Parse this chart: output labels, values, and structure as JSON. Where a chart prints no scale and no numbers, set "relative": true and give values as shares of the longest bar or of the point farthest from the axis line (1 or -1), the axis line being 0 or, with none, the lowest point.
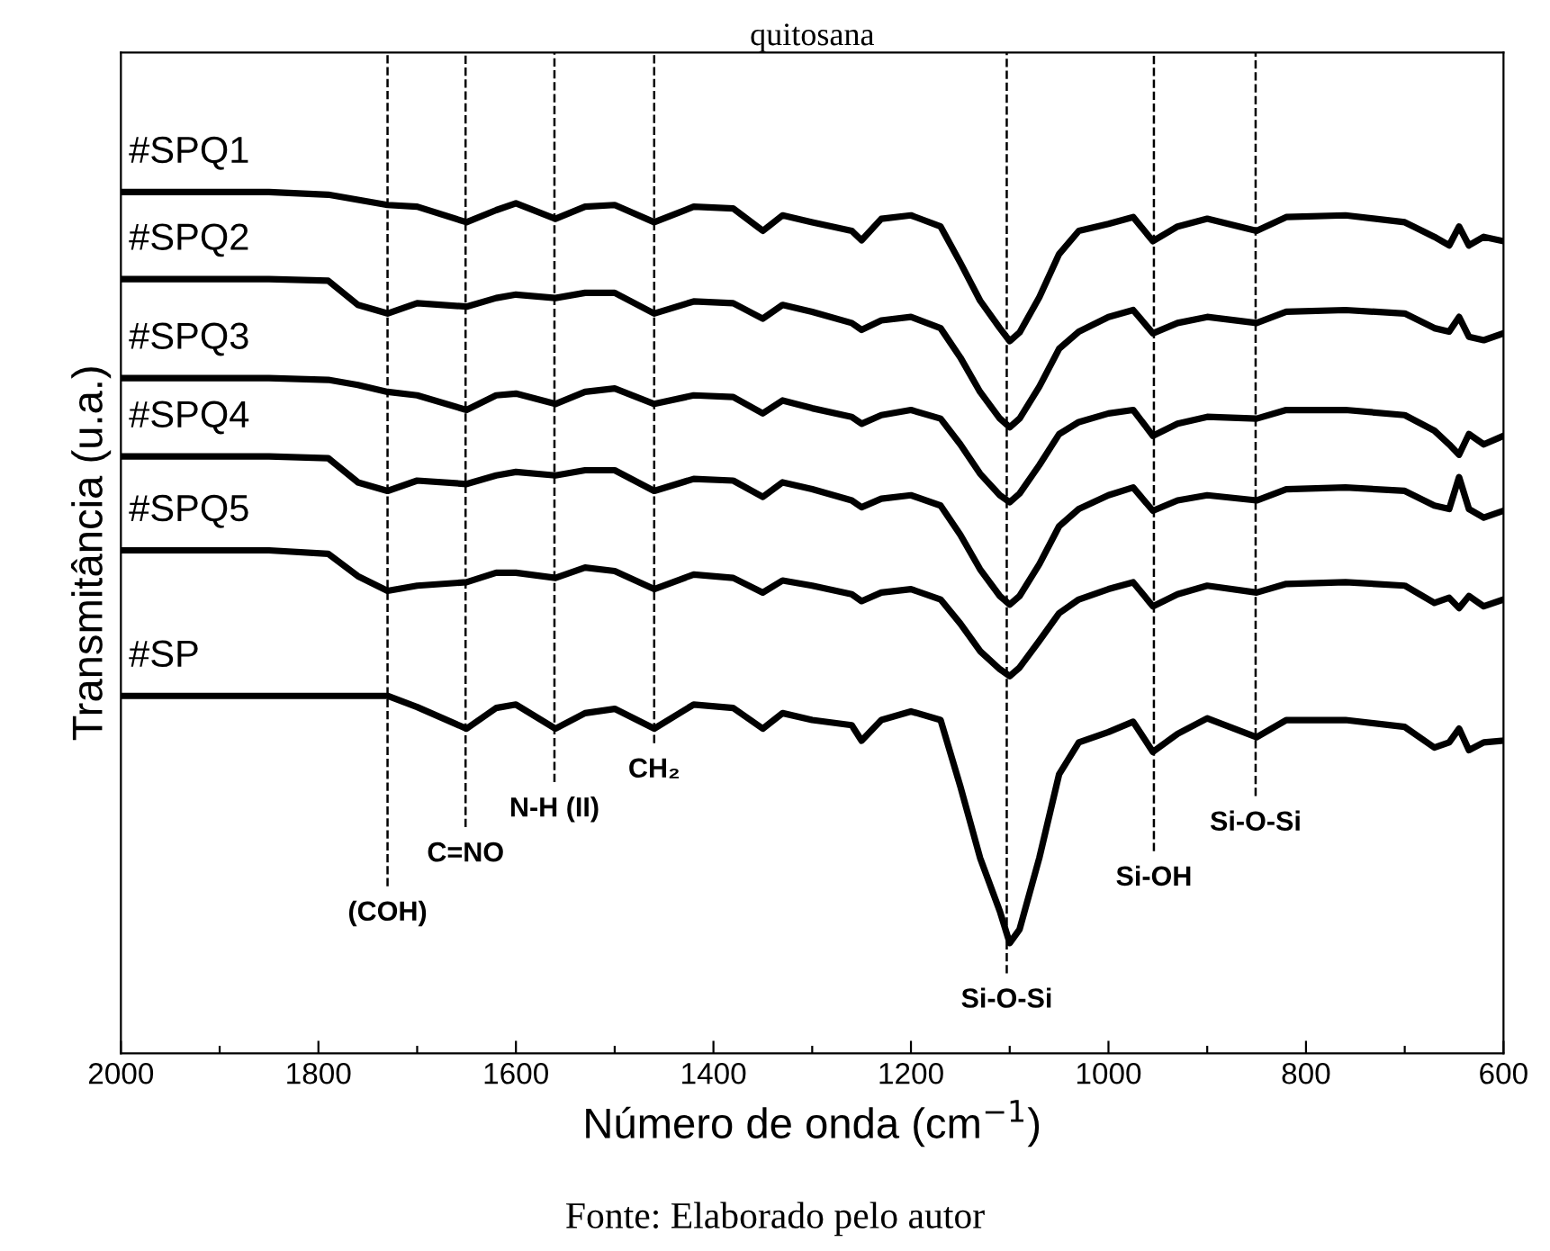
{
  "chart_data": {
    "type": "line",
    "relative": true,
    "title": "quitosana",
    "xlabel": "Número de onda (cm$^{−1}$)",
    "ylabel": "Transmitância (u.a.)",
    "annotations": [
      "Fonte: Elaborado pelo autor"
    ],
    "xlim": [
      2000,
      600
    ],
    "xticks": [
      2000,
      {
        "value": 1900,
        "label": null
      },
      1800,
      {
        "value": 1700,
        "label": null
      },
      1600,
      {
        "value": 1500,
        "label": null
      },
      1400,
      {
        "value": 1300,
        "label": null
      },
      1200,
      {
        "value": 1100,
        "label": null
      },
      1000,
      {
        "value": 900,
        "label": null
      },
      800,
      {
        "value": 700,
        "label": null
      },
      600
    ],
    "tick_labels": "x",
    "grid": false,
    "legend": false,
    "marker": "none",
    "line_style": "solid",
    "x": [
      2000,
      1850,
      1790,
      1760,
      1730,
      1700,
      1650,
      1620,
      1600,
      1560,
      1530,
      1500,
      1460,
      1420,
      1380,
      1350,
      1330,
      1300,
      1260,
      1250,
      1230,
      1200,
      1170,
      1150,
      1130,
      1110,
      1100,
      1090,
      1070,
      1050,
      1030,
      1000,
      975,
      955,
      930,
      900,
      850,
      820,
      760,
      700,
      670,
      655,
      645,
      635,
      620,
      600
    ],
    "series": [
      {
        "name": "#SPQ1",
        "color": "#000000",
        "values": [
          1.0,
          1.0,
          0.997,
          0.991,
          0.985,
          0.983,
          0.965,
          0.979,
          0.987,
          0.969,
          0.983,
          0.985,
          0.965,
          0.983,
          0.981,
          0.955,
          0.973,
          0.965,
          0.955,
          0.944,
          0.969,
          0.973,
          0.96,
          0.918,
          0.874,
          0.842,
          0.827,
          0.837,
          0.878,
          0.928,
          0.955,
          0.963,
          0.971,
          0.943,
          0.96,
          0.969,
          0.955,
          0.971,
          0.973,
          0.965,
          0.948,
          0.938,
          0.96,
          0.938,
          0.948,
          0.943
        ]
      },
      {
        "name": "#SPQ2",
        "color": "#000000",
        "values": [
          0.899,
          0.899,
          0.897,
          0.869,
          0.859,
          0.871,
          0.867,
          0.877,
          0.881,
          0.877,
          0.883,
          0.883,
          0.859,
          0.873,
          0.871,
          0.853,
          0.869,
          0.861,
          0.848,
          0.84,
          0.851,
          0.855,
          0.842,
          0.808,
          0.768,
          0.737,
          0.727,
          0.737,
          0.774,
          0.818,
          0.838,
          0.855,
          0.863,
          0.836,
          0.848,
          0.855,
          0.848,
          0.861,
          0.863,
          0.859,
          0.842,
          0.838,
          0.855,
          0.832,
          0.828,
          0.836
        ]
      },
      {
        "name": "#SPQ3",
        "color": "#000000",
        "values": [
          0.784,
          0.784,
          0.782,
          0.776,
          0.768,
          0.764,
          0.747,
          0.764,
          0.766,
          0.754,
          0.768,
          0.772,
          0.754,
          0.764,
          0.762,
          0.743,
          0.758,
          0.749,
          0.739,
          0.731,
          0.741,
          0.747,
          0.737,
          0.707,
          0.673,
          0.648,
          0.64,
          0.65,
          0.683,
          0.719,
          0.733,
          0.743,
          0.747,
          0.717,
          0.731,
          0.739,
          0.737,
          0.747,
          0.747,
          0.741,
          0.723,
          0.707,
          0.695,
          0.719,
          0.707,
          0.717
        ]
      },
      {
        "name": "#SPQ4",
        "color": "#000000",
        "values": [
          0.693,
          0.693,
          0.691,
          0.663,
          0.653,
          0.665,
          0.661,
          0.671,
          0.675,
          0.671,
          0.677,
          0.677,
          0.653,
          0.667,
          0.665,
          0.646,
          0.663,
          0.655,
          0.642,
          0.634,
          0.644,
          0.648,
          0.636,
          0.602,
          0.562,
          0.531,
          0.521,
          0.531,
          0.568,
          0.612,
          0.632,
          0.648,
          0.657,
          0.63,
          0.642,
          0.648,
          0.642,
          0.655,
          0.657,
          0.653,
          0.636,
          0.632,
          0.669,
          0.632,
          0.622,
          0.63
        ]
      },
      {
        "name": "#SPQ5",
        "color": "#000000",
        "values": [
          0.584,
          0.584,
          0.58,
          0.554,
          0.537,
          0.543,
          0.547,
          0.558,
          0.558,
          0.552,
          0.564,
          0.56,
          0.539,
          0.556,
          0.552,
          0.535,
          0.549,
          0.543,
          0.533,
          0.525,
          0.535,
          0.539,
          0.527,
          0.499,
          0.467,
          0.446,
          0.438,
          0.448,
          0.479,
          0.511,
          0.527,
          0.539,
          0.547,
          0.519,
          0.533,
          0.543,
          0.535,
          0.545,
          0.547,
          0.543,
          0.523,
          0.529,
          0.517,
          0.531,
          0.519,
          0.527
        ]
      },
      {
        "name": "#SP",
        "color": "#000000",
        "values": [
          0.415,
          0.415,
          0.415,
          0.415,
          0.415,
          0.402,
          0.377,
          0.401,
          0.405,
          0.377,
          0.395,
          0.4,
          0.377,
          0.405,
          0.401,
          0.377,
          0.395,
          0.387,
          0.381,
          0.363,
          0.387,
          0.397,
          0.387,
          0.31,
          0.227,
          0.165,
          0.128,
          0.144,
          0.227,
          0.324,
          0.361,
          0.373,
          0.385,
          0.35,
          0.371,
          0.389,
          0.367,
          0.387,
          0.387,
          0.379,
          0.355,
          0.361,
          0.377,
          0.352,
          0.361,
          0.363
        ]
      }
    ],
    "ref_lines": [
      {
        "axis": "x",
        "value": 1730,
        "label": "(COH)",
        "color": "#000000",
        "line_style": "dashed"
      },
      {
        "axis": "x",
        "value": 1651,
        "label": "C=NO",
        "color": "#000000",
        "line_style": "dashed"
      },
      {
        "axis": "x",
        "value": 1561,
        "label": "N-H (II)",
        "color": "#000000",
        "line_style": "dashed"
      },
      {
        "axis": "x",
        "value": 1460,
        "label": "CH₂",
        "color": "#000000",
        "line_style": "dashed"
      },
      {
        "axis": "x",
        "value": 1103,
        "label": "Si-O-Si",
        "color": "#000000",
        "line_style": "dashed"
      },
      {
        "axis": "x",
        "value": 954,
        "label": "Si-OH",
        "color": "#000000",
        "line_style": "dashed"
      },
      {
        "axis": "x",
        "value": 851,
        "label": "Si-O-Si",
        "color": "#000000",
        "line_style": "dashed"
      }
    ]
  }
}
